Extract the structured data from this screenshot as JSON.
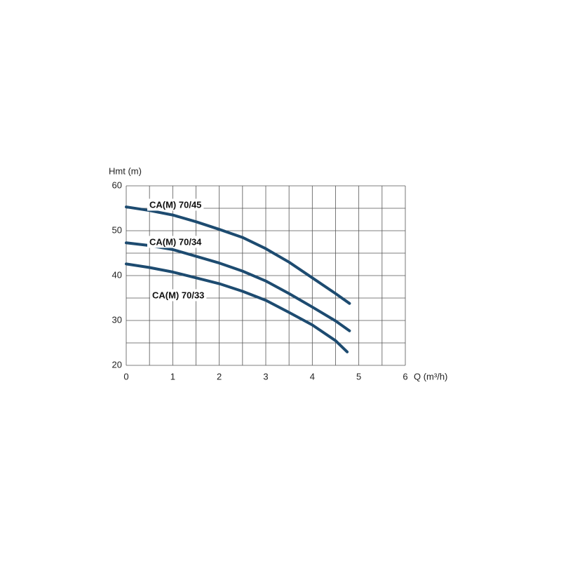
{
  "chart_data": {
    "type": "line",
    "x_label": "Q (m³/h)",
    "y_label": "Hmt (m)",
    "xlim": [
      0,
      6
    ],
    "ylim": [
      20,
      60
    ],
    "xticks": [
      0,
      1,
      2,
      3,
      4,
      5,
      6
    ],
    "yticks": [
      20,
      30,
      40,
      50,
      60
    ],
    "xgrid": [
      0,
      0.5,
      1,
      1.5,
      2,
      2.5,
      3,
      3.5,
      4,
      4.5,
      5,
      5.5,
      6
    ],
    "ygrid": [
      20,
      25,
      30,
      35,
      40,
      45,
      50,
      55,
      60
    ],
    "grid": true,
    "series": [
      {
        "name": "CA(M) 70/45",
        "color": "#1d4b70",
        "x": [
          0,
          0.5,
          1,
          1.5,
          2,
          2.5,
          3,
          3.5,
          4,
          4.5,
          4.8
        ],
        "values": [
          55.3,
          54.5,
          53.5,
          52,
          50.3,
          48.5,
          46,
          43,
          39.5,
          36,
          33.8
        ]
      },
      {
        "name": "CA(M) 70/34",
        "color": "#1d4b70",
        "x": [
          0,
          0.5,
          1,
          1.5,
          2,
          2.5,
          3,
          3.5,
          4,
          4.5,
          4.8
        ],
        "values": [
          47.3,
          46.7,
          45.8,
          44.3,
          42.8,
          41,
          38.8,
          36,
          33,
          29.9,
          27.7
        ]
      },
      {
        "name": "CA(M) 70/33",
        "color": "#1d4b70",
        "x": [
          0,
          0.5,
          1,
          1.5,
          2,
          2.5,
          3,
          3.5,
          4,
          4.5,
          4.75
        ],
        "values": [
          42.6,
          41.8,
          40.8,
          39.5,
          38.2,
          36.5,
          34.5,
          31.8,
          29,
          25.5,
          23
        ]
      }
    ]
  }
}
